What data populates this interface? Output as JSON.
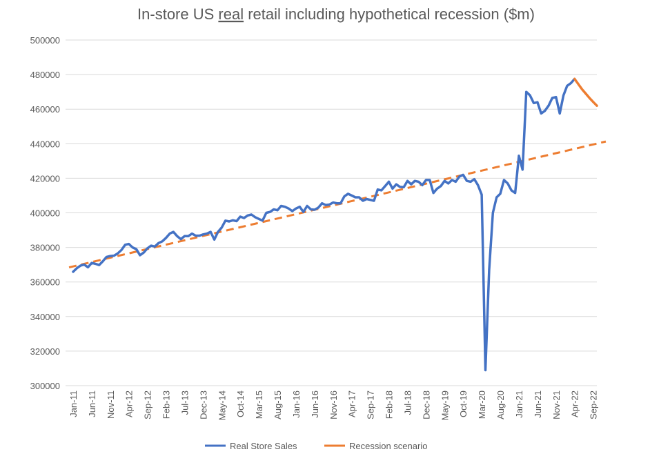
{
  "chart_data": {
    "type": "line",
    "title_parts": [
      "In-store US ",
      "real",
      " retail including hypothetical recession ($m)"
    ],
    "xlabel": "",
    "ylabel": "",
    "ylim": [
      300000,
      500000
    ],
    "yticks": [
      "300000",
      "320000",
      "340000",
      "360000",
      "380000",
      "400000",
      "420000",
      "440000",
      "460000",
      "480000",
      "500000"
    ],
    "ytick_values": [
      300000,
      320000,
      340000,
      360000,
      380000,
      400000,
      420000,
      440000,
      460000,
      480000,
      500000
    ],
    "x_start": "Jan-11",
    "x_end": "Oct-22",
    "month_count": 142,
    "xtick_every_months": 5,
    "xticks": [
      "Jan-11",
      "Jun-11",
      "Nov-11",
      "Apr-12",
      "Sep-12",
      "Feb-13",
      "Jul-13",
      "Dec-13",
      "May-14",
      "Oct-14",
      "Mar-15",
      "Aug-15",
      "Jan-16",
      "Jun-16",
      "Nov-16",
      "Apr-17",
      "Sep-17",
      "Feb-18",
      "Jul-18",
      "Dec-18",
      "May-19",
      "Oct-19",
      "Mar-20",
      "Aug-20",
      "Jan-21",
      "Jun-21",
      "Nov-21",
      "Apr-22",
      "Sep-22"
    ],
    "grid": true,
    "legend_position": "bottom",
    "series": [
      {
        "name": "Real Store Sales",
        "color": "#4472C4",
        "start_index": 0,
        "values": [
          365900,
          368000,
          369500,
          370000,
          368500,
          371000,
          370500,
          369800,
          372000,
          374500,
          375000,
          375200,
          376500,
          378500,
          381500,
          382000,
          380000,
          379000,
          375500,
          377000,
          379500,
          381000,
          380500,
          382500,
          383500,
          385500,
          388000,
          389000,
          386500,
          384800,
          386500,
          386500,
          388000,
          386800,
          386800,
          387500,
          388000,
          389000,
          384500,
          389000,
          391500,
          395500,
          395000,
          395700,
          395200,
          397800,
          397000,
          398500,
          399000,
          397500,
          396500,
          395500,
          400000,
          400500,
          402000,
          401500,
          404000,
          403500,
          402500,
          401000,
          402500,
          403500,
          400500,
          404000,
          402000,
          401800,
          403000,
          405500,
          404500,
          404800,
          406000,
          405500,
          405500,
          409500,
          411000,
          410000,
          409000,
          409000,
          407000,
          408000,
          407500,
          407000,
          413500,
          413000,
          415500,
          418000,
          414000,
          416500,
          415000,
          414800,
          418500,
          416500,
          418500,
          418000,
          416000,
          419000,
          419000,
          411500,
          414000,
          415500,
          418500,
          417000,
          419000,
          418000,
          421000,
          422000,
          418500,
          418000,
          419500,
          416000,
          410500,
          309000,
          367000,
          400000,
          409000,
          411000,
          419000,
          417000,
          413000,
          411500,
          433000,
          425000,
          470000,
          468000,
          463500,
          464000,
          457500,
          459000,
          462000,
          466500,
          467000,
          457500,
          468000,
          473500,
          475000,
          477500
        ]
      },
      {
        "name": "Recession scenario",
        "color": "#ED7D31",
        "start_index": 135,
        "values": [
          477500,
          474500,
          471500,
          469000,
          466500,
          464200,
          462000
        ]
      }
    ],
    "trend": {
      "color": "#ED7D31",
      "style": "dashed",
      "start_value": 369000,
      "monthly_increase": 504
    }
  }
}
